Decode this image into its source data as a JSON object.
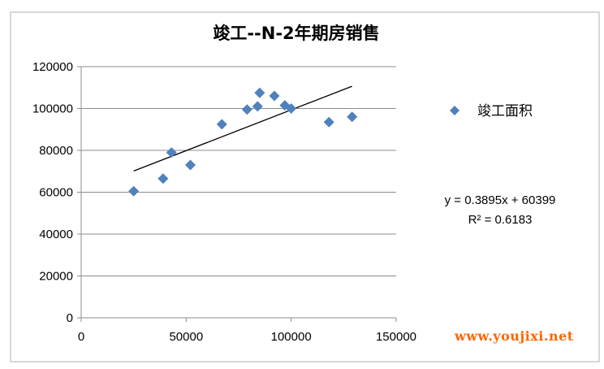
{
  "chart_data": {
    "type": "scatter",
    "title": "竣工--N-2年期房销售",
    "xlabel": "",
    "ylabel": "",
    "xlim": [
      0,
      150000
    ],
    "ylim": [
      0,
      120000
    ],
    "xticks": [
      "0",
      "50000",
      "100000",
      "150000"
    ],
    "yticks": [
      "0",
      "20000",
      "40000",
      "60000",
      "80000",
      "100000",
      "120000"
    ],
    "grid": "horizontal",
    "legend_position": "right",
    "series": [
      {
        "name": "竣工面积",
        "color": "#4f81bd",
        "marker": "diamond",
        "points": [
          {
            "x": 25000,
            "y": 60500
          },
          {
            "x": 39000,
            "y": 66500
          },
          {
            "x": 43000,
            "y": 79000
          },
          {
            "x": 52000,
            "y": 73000
          },
          {
            "x": 67000,
            "y": 92500
          },
          {
            "x": 79000,
            "y": 99500
          },
          {
            "x": 84000,
            "y": 101000
          },
          {
            "x": 85000,
            "y": 107500
          },
          {
            "x": 92000,
            "y": 106000
          },
          {
            "x": 97000,
            "y": 101500
          },
          {
            "x": 100000,
            "y": 100000
          },
          {
            "x": 118000,
            "y": 93500
          },
          {
            "x": 129000,
            "y": 96000
          }
        ]
      }
    ],
    "trendline": {
      "type": "linear",
      "slope": 0.3895,
      "intercept": 60399,
      "x_range": [
        25000,
        129000
      ],
      "color": "#000000",
      "equation_text": "y = 0.3895x + 60399",
      "r2_text": "R² = 0.6183"
    }
  },
  "watermark": "www.youjixi.net"
}
